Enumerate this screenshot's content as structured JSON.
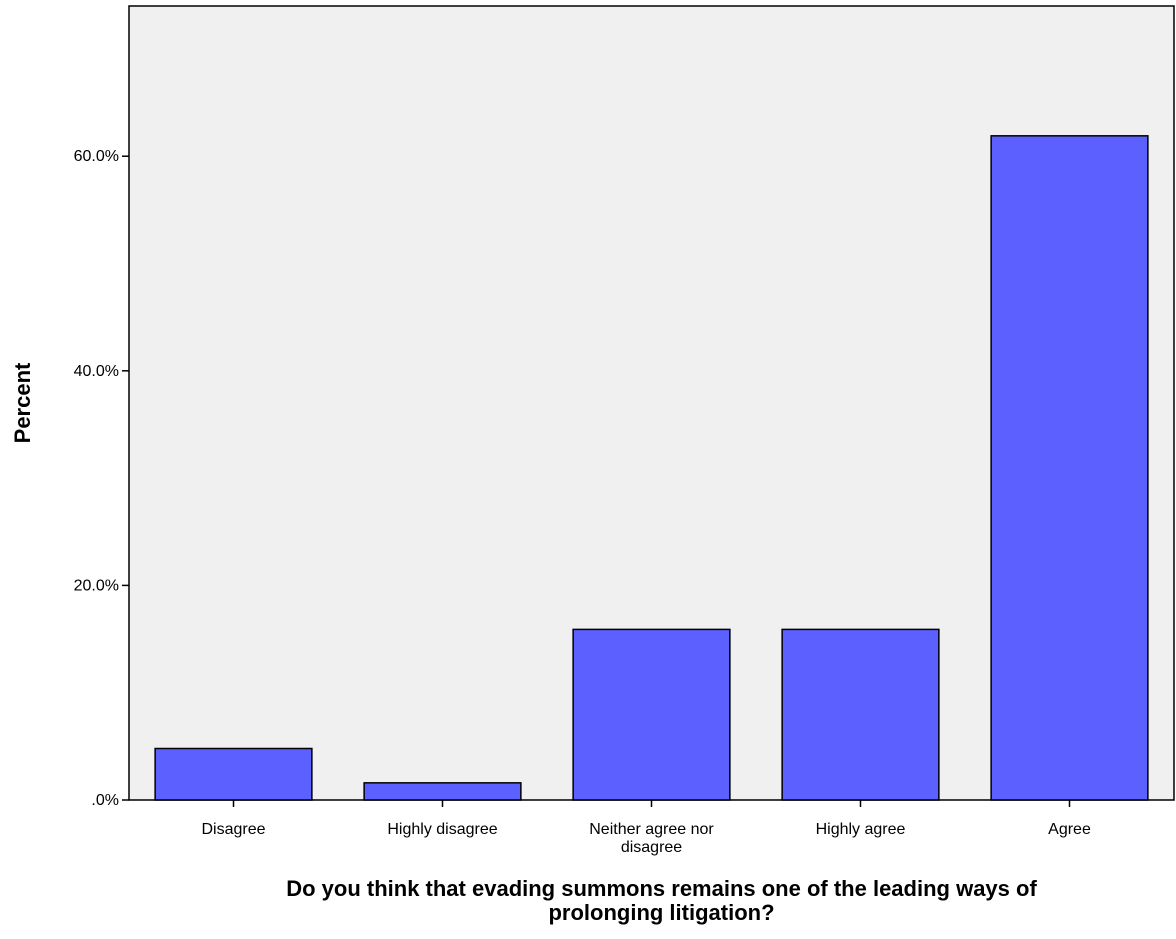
{
  "chart_data": {
    "type": "bar",
    "title": "",
    "xlabel": "Do you think that evading summons remains one of the leading ways of prolonging litigation?",
    "xlabel_lines": [
      "Do you think that evading summons remains one of the leading ways of",
      "prolonging litigation?"
    ],
    "ylabel": "Percent",
    "categories": [
      "Disagree",
      "Highly disagree",
      "Neither agree nor disagree",
      "Highly agree",
      "Agree"
    ],
    "category_lines": [
      [
        "Disagree"
      ],
      [
        "Highly disagree"
      ],
      [
        "Neither agree nor",
        "disagree"
      ],
      [
        "Highly agree"
      ],
      [
        "Agree"
      ]
    ],
    "values": [
      4.8,
      1.6,
      15.9,
      15.9,
      61.9
    ],
    "ylim": [
      0,
      74
    ],
    "yticks": [
      0,
      20,
      40,
      60
    ],
    "ytick_labels": [
      ".0%",
      "20.0%",
      "40.0%",
      "60.0%"
    ],
    "grid": false,
    "colors": {
      "bar_fill": "#5c60ff",
      "bar_stroke": "#000000",
      "plot_background": "#f0f0f0"
    }
  }
}
